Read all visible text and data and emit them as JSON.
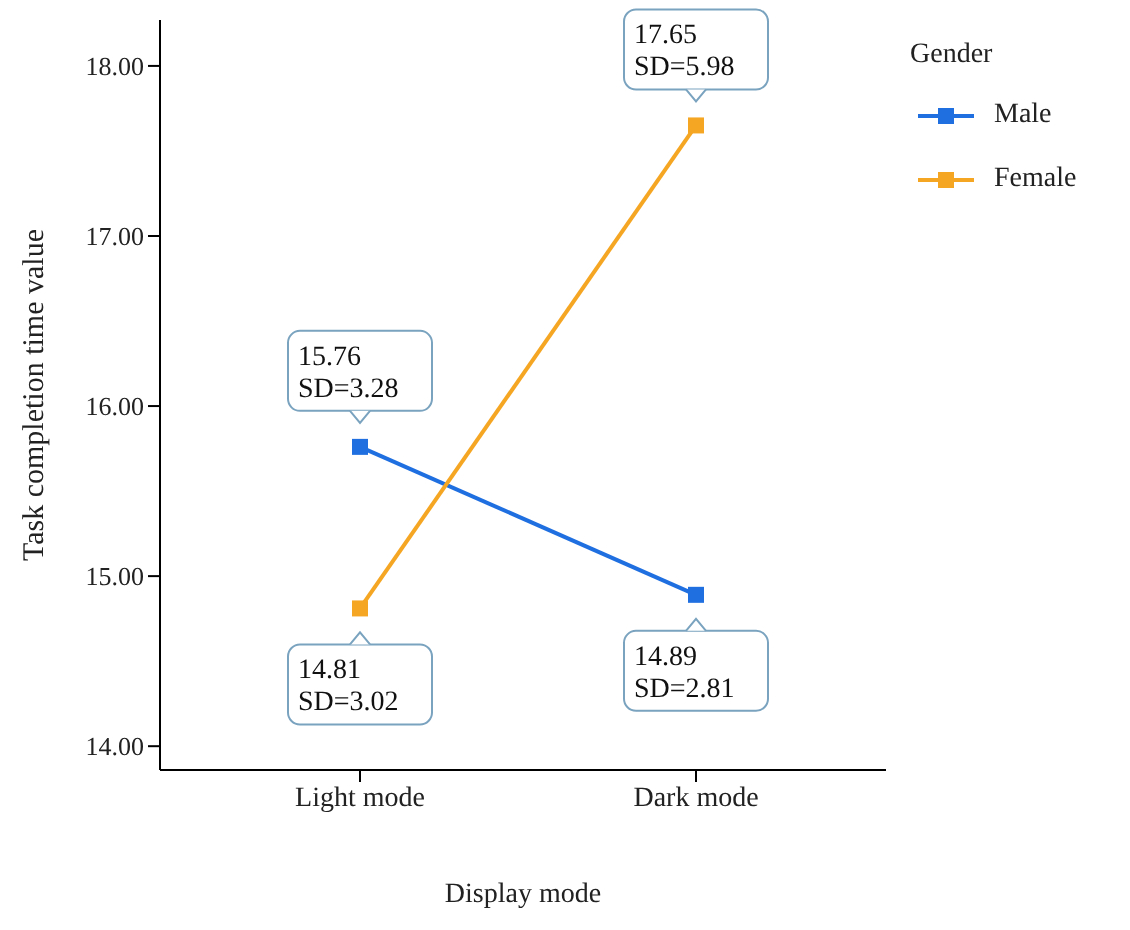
{
  "chart_data": {
    "type": "line",
    "xlabel": "Display mode",
    "ylabel": "Task completion time value",
    "legend_title": "Gender",
    "categories": [
      "Light mode",
      "Dark mode"
    ],
    "series": [
      {
        "name": "Male",
        "color": "#1f6fe0",
        "values": [
          15.76,
          14.89
        ],
        "value_labels": [
          "15.76\nSD=3.28",
          "14.89\nSD=2.81"
        ]
      },
      {
        "name": "Female",
        "color": "#f5a623",
        "values": [
          14.81,
          17.65
        ],
        "value_labels": [
          "14.81\nSD=3.02",
          "17.65\nSD=5.98"
        ]
      }
    ],
    "ylim": [
      13.86,
      18.27
    ],
    "yticks": [
      {
        "value": 14,
        "label": "14.00"
      },
      {
        "value": 15,
        "label": "15.00"
      },
      {
        "value": 16,
        "label": "16.00"
      },
      {
        "value": 17,
        "label": "17.00"
      },
      {
        "value": 18,
        "label": "18.00"
      }
    ],
    "grid": false,
    "legend": "right",
    "marker": "square",
    "line_style": "solid"
  }
}
